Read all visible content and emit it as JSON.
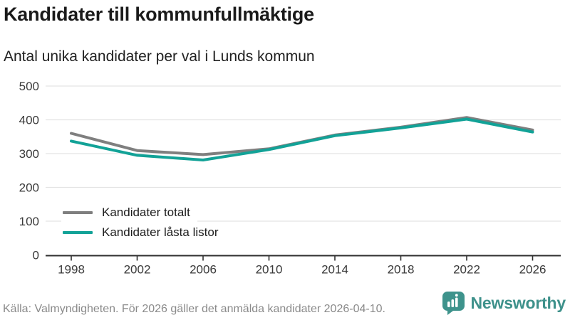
{
  "header": {
    "title": "Kandidater till kommunfullmäktige",
    "subtitle": "Antal unika kandidater per val i Lunds kommun"
  },
  "chart_data": {
    "type": "line",
    "title": "Kandidater till kommunfullmäktige",
    "subtitle": "Antal unika kandidater per val i Lunds kommun",
    "categories": [
      "1998",
      "2002",
      "2006",
      "2010",
      "2014",
      "2018",
      "2022",
      "2026"
    ],
    "series": [
      {
        "name": "Kandidater totalt",
        "color": "#7f7f7f",
        "values": [
          360,
          309,
          297,
          314,
          355,
          378,
          407,
          370
        ]
      },
      {
        "name": "Kandidater låsta listor",
        "color": "#12a297",
        "values": [
          337,
          295,
          281,
          312,
          353,
          376,
          402,
          364
        ]
      }
    ],
    "xlabel": "",
    "ylabel": "",
    "ylim": [
      0,
      500
    ],
    "yticks": [
      0,
      100,
      200,
      300,
      400,
      500
    ],
    "grid": "horizontal",
    "legend_position": "inside-bottom-left"
  },
  "colors": {
    "grid": "#e3e3e3",
    "axis": "#2f2f2f",
    "tick_label": "#3a3a3a",
    "brand": "#3e918b"
  },
  "footer": {
    "source": "Källa: Valmyndigheten. För 2026 gäller det anmälda kandidater 2026-04-10.",
    "brand": "Newsworthy"
  }
}
